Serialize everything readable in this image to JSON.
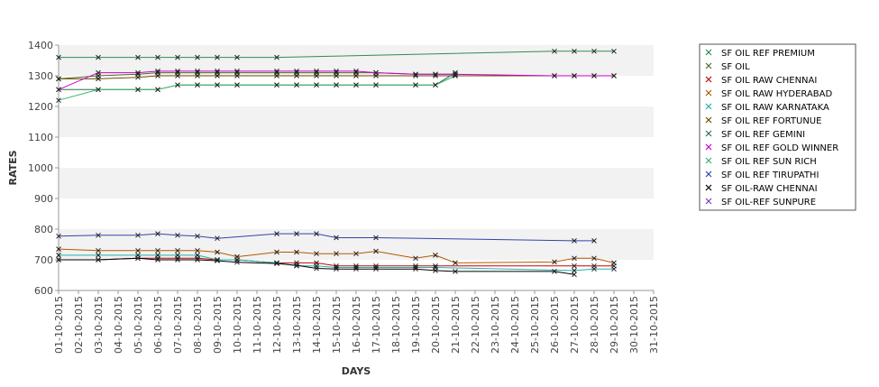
{
  "chart_data": {
    "type": "line",
    "xlabel": "DAYS",
    "ylabel": "RATES",
    "ylim": [
      600,
      1400
    ],
    "yticks": [
      600,
      700,
      800,
      900,
      1000,
      1100,
      1200,
      1300,
      1400
    ],
    "grid": "alternating horizontal bands",
    "legend_position": "right",
    "categories": [
      "01-10-2015",
      "02-10-2015",
      "03-10-2015",
      "04-10-2015",
      "05-10-2015",
      "06-10-2015",
      "07-10-2015",
      "08-10-2015",
      "09-10-2015",
      "10-10-2015",
      "11-10-2015",
      "12-10-2015",
      "13-10-2015",
      "14-10-2015",
      "15-10-2015",
      "16-10-2015",
      "17-10-2015",
      "18-10-2015",
      "19-10-2015",
      "20-10-2015",
      "21-10-2015",
      "22-10-2015",
      "23-10-2015",
      "24-10-2015",
      "25-10-2015",
      "26-10-2015",
      "27-10-2015",
      "28-10-2015",
      "29-10-2015",
      "30-10-2015",
      "31-10-2015"
    ],
    "series": [
      {
        "name": " SF OIL REF PREMIUM",
        "color": "#2e8b57",
        "values": [
          1360,
          null,
          1360,
          null,
          1360,
          1360,
          1360,
          1360,
          1360,
          1360,
          null,
          1360,
          null,
          null,
          null,
          null,
          null,
          null,
          null,
          null,
          null,
          null,
          null,
          null,
          null,
          1380,
          1380,
          1380,
          1380,
          null,
          null
        ]
      },
      {
        "name": "SF OIL",
        "color": "#556b2f",
        "values": [
          1290,
          null,
          1300,
          null,
          1305,
          1310,
          1310,
          1310,
          1310,
          1310,
          null,
          1310,
          1310,
          1310,
          1310,
          1310,
          1310,
          null,
          1305,
          1305,
          1305,
          null,
          null,
          null,
          null,
          null,
          null,
          null,
          null,
          null,
          null
        ]
      },
      {
        "name": "SF OIL RAW CHENNAI",
        "color": "#cc0000",
        "values": [
          700,
          null,
          700,
          null,
          705,
          705,
          705,
          705,
          700,
          700,
          null,
          690,
          690,
          690,
          680,
          680,
          680,
          null,
          680,
          680,
          null,
          null,
          null,
          null,
          null,
          null,
          680,
          680,
          680,
          null,
          null
        ]
      },
      {
        "name": "SF OIL RAW HYDERABAD",
        "color": "#b35900",
        "values": [
          735,
          null,
          730,
          null,
          730,
          730,
          730,
          730,
          725,
          710,
          null,
          725,
          725,
          720,
          720,
          720,
          728,
          null,
          705,
          715,
          690,
          null,
          null,
          null,
          null,
          693,
          705,
          705,
          690,
          null,
          null
        ]
      },
      {
        "name": "SF OIL RAW KARNATAKA",
        "color": "#20b2aa",
        "values": [
          715,
          null,
          715,
          null,
          715,
          715,
          715,
          715,
          700,
          700,
          null,
          690,
          680,
          680,
          675,
          675,
          675,
          null,
          675,
          675,
          null,
          null,
          null,
          null,
          null,
          null,
          665,
          670,
          670,
          null,
          null
        ]
      },
      {
        "name": "SF OIL REF FORTUNUE",
        "color": "#6b4e00",
        "values": [
          1290,
          null,
          1290,
          null,
          1295,
          1300,
          1300,
          1300,
          1300,
          1300,
          null,
          1300,
          1300,
          1300,
          1300,
          1300,
          1300,
          null,
          1300,
          1300,
          1300,
          null,
          null,
          null,
          null,
          1300,
          1300,
          1300,
          1300,
          null,
          null
        ]
      },
      {
        "name": "SF OIL REF GEMINI",
        "color": "#2f6f4f",
        "values": [
          1255,
          null,
          1255,
          null,
          1255,
          1255,
          1270,
          1270,
          1270,
          1270,
          null,
          1270,
          1270,
          1270,
          1270,
          1270,
          1270,
          null,
          1270,
          1270,
          1310,
          null,
          null,
          null,
          null,
          null,
          null,
          null,
          null,
          null,
          null
        ]
      },
      {
        "name": "SF OIL REF GOLD WINNER",
        "color": "#cc00cc",
        "values": [
          1255,
          null,
          1310,
          null,
          1310,
          1315,
          1315,
          1315,
          1315,
          1315,
          null,
          1315,
          1315,
          1315,
          1315,
          1315,
          1310,
          null,
          1305,
          1305,
          1305,
          null,
          null,
          null,
          null,
          1300,
          1300,
          1300,
          1300,
          null,
          null
        ]
      },
      {
        "name": "SF OIL REF SUN RICH",
        "color": "#3cb371",
        "values": [
          1220,
          null,
          1255,
          null,
          1255,
          1255,
          1270,
          1270,
          1270,
          1270,
          null,
          1270,
          1270,
          1270,
          1270,
          1270,
          1270,
          null,
          1270,
          1270,
          1300,
          null,
          null,
          null,
          null,
          null,
          null,
          null,
          null,
          null,
          null
        ]
      },
      {
        "name": "SF OIL REF TIRUPATHI",
        "color": "#3344aa",
        "values": [
          777,
          null,
          780,
          null,
          780,
          785,
          780,
          777,
          770,
          null,
          null,
          785,
          785,
          785,
          772,
          null,
          772,
          null,
          null,
          null,
          null,
          null,
          null,
          null,
          null,
          null,
          762,
          762,
          null,
          null,
          null
        ]
      },
      {
        "name": "SF OIL-RAW CHENNAI",
        "color": "#000000",
        "values": [
          700,
          null,
          700,
          null,
          705,
          700,
          700,
          700,
          697,
          692,
          null,
          688,
          682,
          672,
          670,
          670,
          670,
          null,
          670,
          665,
          662,
          null,
          null,
          null,
          null,
          662,
          652,
          null,
          null,
          null,
          null
        ]
      },
      {
        "name": "SF OIL-REF SUNPURE",
        "color": "#7b3fb8",
        "values": [
          null,
          null,
          null,
          null,
          null,
          null,
          null,
          null,
          null,
          null,
          null,
          null,
          null,
          null,
          null,
          null,
          null,
          null,
          null,
          null,
          null,
          null,
          null,
          null,
          null,
          null,
          null,
          null,
          null,
          null,
          null
        ]
      }
    ]
  }
}
